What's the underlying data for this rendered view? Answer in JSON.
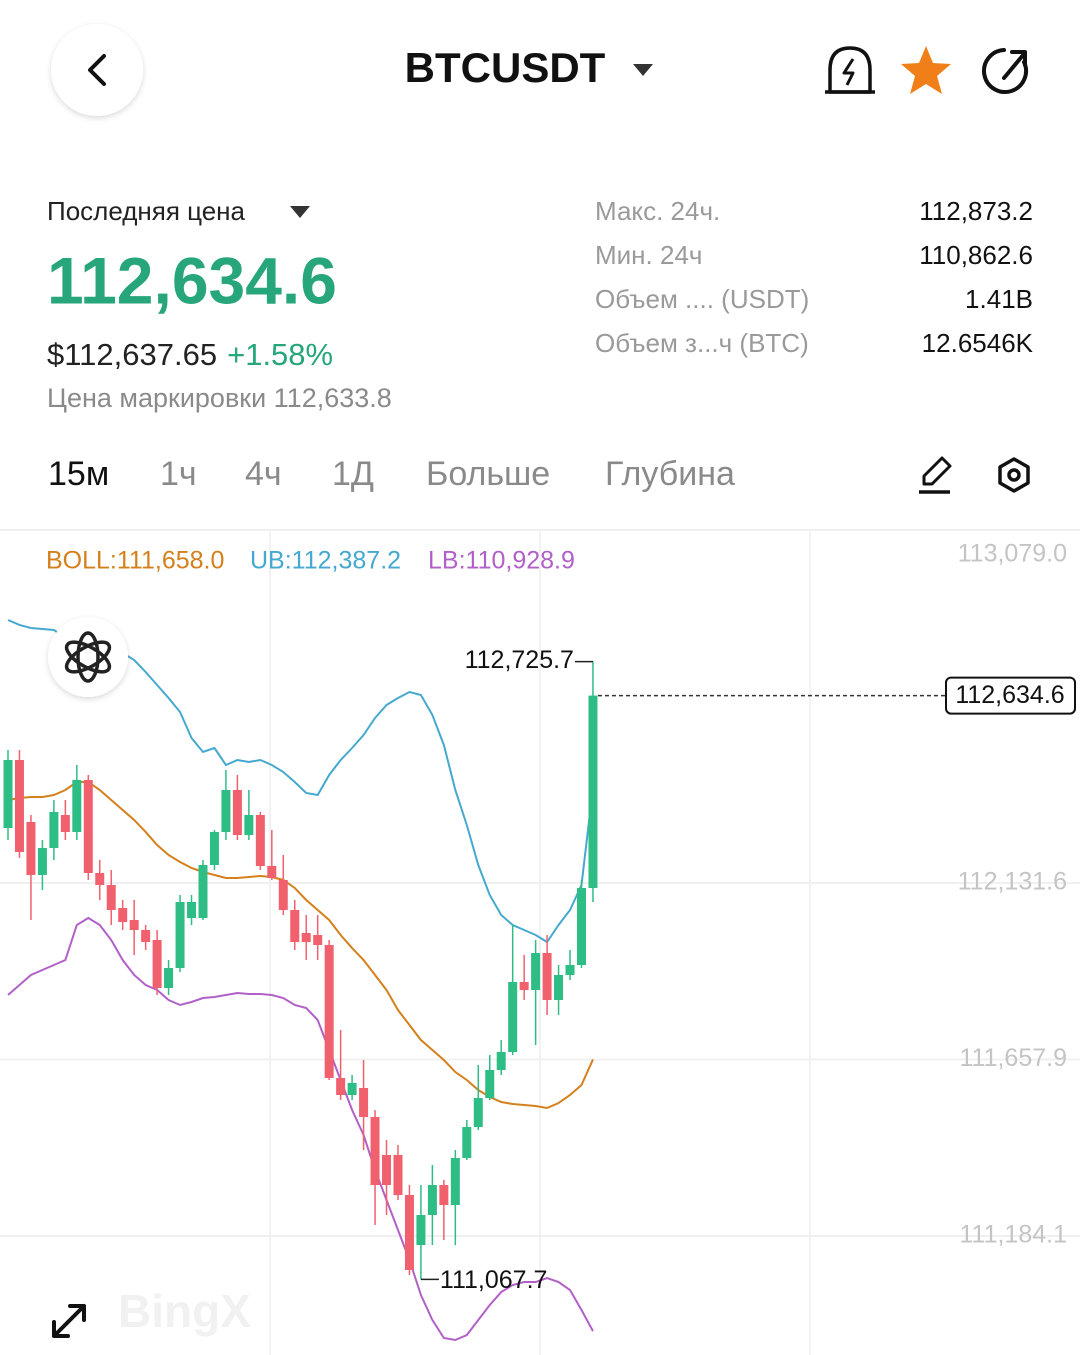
{
  "header": {
    "title": "BTCUSDT"
  },
  "ticker": {
    "price_type": "Последняя цена",
    "last_price": "112,634.6",
    "usd_price": "$112,637.65",
    "change": "+1.58%",
    "mark_price": "Цена маркировки 112,633.8",
    "stats": [
      {
        "label": "Макс. 24ч.",
        "value": "112,873.2"
      },
      {
        "label": "Мин. 24ч",
        "value": "110,862.6"
      },
      {
        "label": "Объем .... (USDT)",
        "value": "1.41B"
      },
      {
        "label": "Объем з...ч (BTC)",
        "value": "12.6546K"
      }
    ]
  },
  "tabs": [
    "15м",
    "1ч",
    "4ч",
    "1Д",
    "Больше",
    "Глубина"
  ],
  "chart_data": {
    "type": "candlestick",
    "watermark": "BingX",
    "up_color": "#2ebd85",
    "down_color": "#f0616d",
    "ylim": [
      110864.8,
      113079.0
    ],
    "yticks": [
      {
        "value": 113079.0,
        "label": "113,079.0"
      },
      {
        "value": 112131.6,
        "label": "112,131.6"
      },
      {
        "value": 111657.9,
        "label": "111,657.9"
      },
      {
        "value": 111184.1,
        "label": "111,184.1"
      }
    ],
    "grid": true,
    "open": [
      112279.2,
      112461.7,
      112295.3,
      112153.1,
      112225.5,
      112314.1,
      112268.5,
      112408.1,
      112158.4,
      112126.2,
      112064.5,
      112032.3,
      112005.5,
      111978.6,
      111849.8,
      111903.5,
      112037.7,
      112037.7,
      112179.9,
      112268.5,
      112381.2,
      112260.4,
      112314.1,
      112177.2,
      112139.7,
      112059.1,
      111997.4,
      111992.0,
      111965.2,
      111608.2,
      111562.6,
      111581.4,
      111503.5,
      111401.6,
      111401.6,
      111294.2,
      111160.0,
      111240.5,
      111321.0,
      111267.4,
      111393.5,
      111476.7,
      111554.5,
      111629.7,
      111678.0,
      111865.9,
      111844.4,
      111943.7,
      111817.6,
      111884.7,
      111911.5,
      112118.2
    ],
    "high": [
      112488.6,
      112488.6,
      112314.1,
      112247.0,
      112354.4,
      112354.4,
      112448.3,
      112421.5,
      112193.3,
      112166.5,
      112086.0,
      112086.0,
      112018.9,
      112005.5,
      111924.9,
      112099.4,
      112099.4,
      112193.3,
      112273.9,
      112434.9,
      112421.5,
      112381.2,
      112322.2,
      112273.9,
      112206.8,
      112086.0,
      112045.7,
      112045.7,
      111978.6,
      111737.1,
      111616.3,
      111656.5,
      111522.3,
      111441.8,
      111428.4,
      111321.0,
      111321.0,
      111374.7,
      111334.5,
      111415.0,
      111495.5,
      111643.1,
      111670.0,
      111710.2,
      112018.9,
      111938.4,
      111978.6,
      111992.0,
      111911.5,
      111951.8,
      112139.7,
      112725.7
    ],
    "low": [
      112247.0,
      112198.7,
      112032.3,
      112112.8,
      112193.3,
      112247.0,
      112247.0,
      112139.7,
      112086.0,
      112018.9,
      112005.5,
      111938.4,
      111951.8,
      111831.0,
      111831.0,
      111892.7,
      112018.9,
      112032.3,
      112166.5,
      112247.0,
      112247.0,
      112247.0,
      112166.5,
      112139.7,
      112045.7,
      111951.8,
      111924.9,
      111924.9,
      111602.9,
      111549.2,
      111549.2,
      111415.0,
      111213.7,
      111240.5,
      111280.8,
      111079.5,
      111067.7,
      111160.0,
      111173.4,
      111160.0,
      111388.1,
      111468.7,
      111549.2,
      111616.3,
      111670.0,
      111817.6,
      111696.8,
      111777.3,
      111777.3,
      111871.3,
      111903.5,
      112080.6
    ],
    "close": [
      112461.7,
      112214.8,
      112153.1,
      112225.5,
      112322.2,
      112268.5,
      112408.1,
      112158.4,
      112126.2,
      112059.1,
      112026.9,
      112005.5,
      111973.2,
      111849.8,
      111903.5,
      112080.6,
      112080.6,
      112179.9,
      112268.5,
      112381.2,
      112260.4,
      112314.1,
      112177.2,
      112145.0,
      112059.1,
      111973.2,
      111973.2,
      111965.2,
      111608.2,
      111562.6,
      111594.8,
      111503.5,
      111321.0,
      111321.0,
      111294.2,
      111092.9,
      111240.5,
      111321.0,
      111267.4,
      111393.5,
      111476.7,
      111554.5,
      111629.7,
      111678.0,
      111865.9,
      111844.4,
      111943.7,
      111817.6,
      111884.7,
      111911.5,
      112118.2,
      112634.6
    ],
    "bands": [
      {
        "legend": "BOLL:111,658.0",
        "color": "#d4801c",
        "values": [
          112354.4,
          112359.7,
          112362.4,
          112362.4,
          112367.8,
          112381.2,
          112402.7,
          112402.7,
          112381.2,
          112354.4,
          112327.5,
          112300.7,
          112268.5,
          112233.6,
          112206.8,
          112188.0,
          112171.9,
          112161.1,
          112153.1,
          112145.0,
          112145.0,
          112147.7,
          112150.4,
          112147.7,
          112139.7,
          112118.2,
          112086.0,
          112059.1,
          112032.3,
          111992.0,
          111957.1,
          111924.9,
          111884.7,
          111844.4,
          111790.7,
          111750.5,
          111710.2,
          111683.4,
          111656.5,
          111624.3,
          111602.9,
          111576.0,
          111557.2,
          111543.8,
          111538.4,
          111535.8,
          111533.1,
          111527.7,
          111541.1,
          111562.6,
          111589.4,
          111658.0
        ]
      },
      {
        "legend": "UB:112,387.2",
        "color": "#45a9cf",
        "values": [
          112837.5,
          112824.1,
          112816.0,
          112813.3,
          112810.7,
          112789.2,
          112778.4,
          112770.4,
          112765.0,
          112762.3,
          112748.9,
          112730.1,
          112697.9,
          112663.0,
          112628.1,
          112590.6,
          112520.8,
          112483.2,
          112493.9,
          112448.3,
          112461.7,
          112456.4,
          112461.7,
          112448.3,
          112429.5,
          112402.7,
          112373.2,
          112367.8,
          112421.5,
          112461.7,
          112493.9,
          112528.8,
          112574.5,
          112609.4,
          112628.1,
          112644.2,
          112636.2,
          112582.5,
          112502.0,
          112381.2,
          112287.3,
          112179.9,
          112099.4,
          112045.7,
          112018.9,
          112005.5,
          111992.0,
          111973.2,
          112018.9,
          112059.1,
          112126.2,
          112387.2
        ]
      },
      {
        "legend": "LB:110,928.9",
        "color": "#b160c8",
        "values": [
          111831.0,
          111857.8,
          111884.7,
          111898.1,
          111911.5,
          111924.9,
          112018.9,
          112037.7,
          112018.9,
          111978.6,
          111924.9,
          111884.7,
          111857.8,
          111844.4,
          111817.6,
          111804.2,
          111812.2,
          111822.9,
          111825.6,
          111831.0,
          111836.4,
          111833.7,
          111833.7,
          111831.0,
          111822.9,
          111804.2,
          111796.1,
          111763.9,
          111683.4,
          111602.9,
          111522.3,
          111455.2,
          111361.3,
          111280.8,
          111200.3,
          111119.7,
          111025.8,
          110958.7,
          110910.4,
          110905.0,
          110918.4,
          110958.7,
          110999.0,
          111033.8,
          111052.6,
          111060.7,
          111060.7,
          111071.4,
          111060.7,
          111039.2,
          110985.5,
          110928.9
        ]
      }
    ],
    "annotations": {
      "high": "112,725.7",
      "low": "111,067.7",
      "last": "112,634.6"
    }
  }
}
